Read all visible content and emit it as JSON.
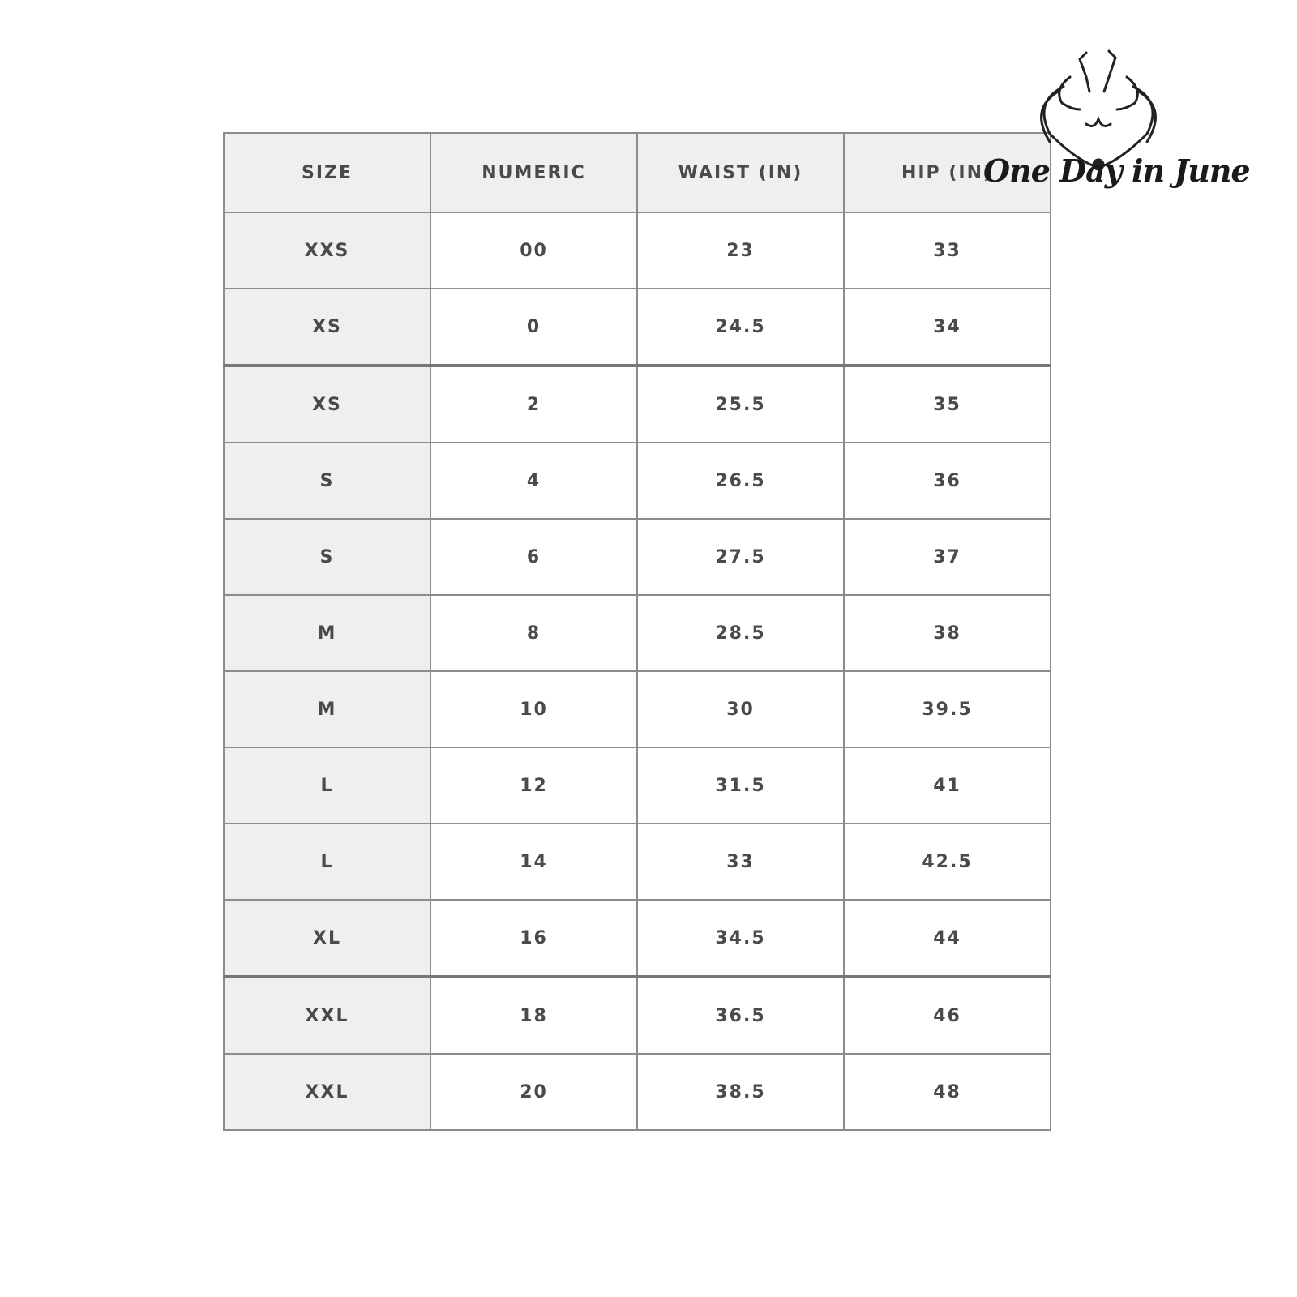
{
  "brand": {
    "name": "One Day in June"
  },
  "table": {
    "headers": [
      "SIZE",
      "NUMERIC",
      "WAIST (IN)",
      "HIP (IN)"
    ],
    "rows": [
      [
        "XXS",
        "00",
        "23",
        "33"
      ],
      [
        "XS",
        "0",
        "24.5",
        "34"
      ],
      [
        "XS",
        "2",
        "25.5",
        "35"
      ],
      [
        "S",
        "4",
        "26.5",
        "36"
      ],
      [
        "S",
        "6",
        "27.5",
        "37"
      ],
      [
        "M",
        "8",
        "28.5",
        "38"
      ],
      [
        "M",
        "10",
        "30",
        "39.5"
      ],
      [
        "L",
        "12",
        "31.5",
        "41"
      ],
      [
        "L",
        "14",
        "33",
        "42.5"
      ],
      [
        "XL",
        "16",
        "34.5",
        "44"
      ],
      [
        "XXL",
        "18",
        "36.5",
        "46"
      ],
      [
        "XXL",
        "20",
        "38.5",
        "48"
      ]
    ]
  }
}
